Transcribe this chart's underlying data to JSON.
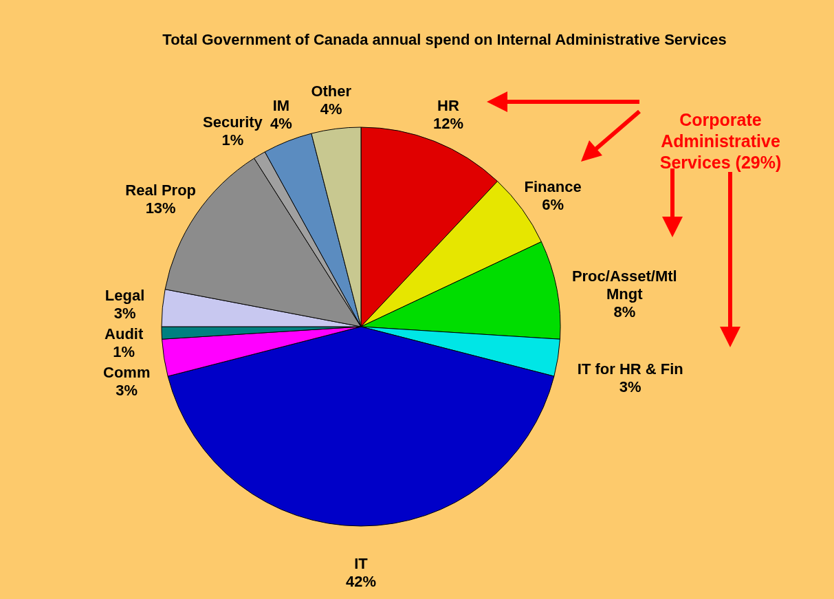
{
  "chart_data": {
    "type": "pie",
    "title": "Total Government of Canada annual spend on Internal Administrative Services",
    "categories": [
      "HR",
      "Finance",
      "Proc/Asset/Mtl Mngt",
      "IT for HR & Fin",
      "IT",
      "Comm",
      "Audit",
      "Legal",
      "Real Prop",
      "Security",
      "IM",
      "Other"
    ],
    "values": [
      12,
      6,
      8,
      3,
      42,
      3,
      1,
      3,
      13,
      1,
      4,
      4
    ],
    "colors": [
      "#e00000",
      "#e6e600",
      "#00dd00",
      "#00e6e6",
      "#0000c8",
      "#ff00ff",
      "#008080",
      "#c8c8f0",
      "#8c8c8c",
      "#a0a0a0",
      "#5b8cc0",
      "#c8c890"
    ],
    "value_labels": [
      "12%",
      "6%",
      "8%",
      "3%",
      "42%",
      "3%",
      "1%",
      "3%",
      "13%",
      "1%",
      "4%",
      "4%"
    ],
    "annotations": [
      "Corporate Administrative Services (29%)"
    ]
  }
}
